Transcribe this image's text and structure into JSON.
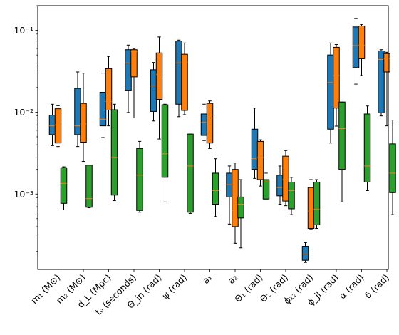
{
  "chart_data": {
    "type": "boxplot",
    "title": "",
    "xlabel": "",
    "ylabel": "",
    "yscale": "log",
    "ylim": [
      0.00012,
      0.2
    ],
    "yticks": [
      {
        "value": 0.001,
        "label": "10⁻³"
      },
      {
        "value": 0.01,
        "label": "10⁻²"
      },
      {
        "value": 0.1,
        "label": "10⁻¹"
      }
    ],
    "grid": false,
    "legend": "none",
    "colors": [
      "#1f77b4",
      "#ff7f0e",
      "#2ca02c"
    ],
    "median_color": "#ff7f0e",
    "categories": [
      "m₁ (M⊙)",
      "m₂ (M⊙)",
      "d_L (Mpc)",
      "t₀ (seconds)",
      "Θ_jn (rad)",
      "ψ (rad)",
      "a₁",
      "a₂",
      "Θ₁ (rad)",
      "Θ₂ (rad)",
      "ϕ₁₂ (rad)",
      "ϕ_jl (rad)",
      "α (rad)",
      "δ (rad)"
    ],
    "series": [
      {
        "color": "#1f77b4",
        "boxes": [
          {
            "whislo": 0.0039,
            "q1": 0.0053,
            "med": 0.0068,
            "q3": 0.0092,
            "whishi": 0.0125
          },
          {
            "whislo": 0.0038,
            "q1": 0.0053,
            "med": 0.0068,
            "q3": 0.0195,
            "whishi": 0.031
          },
          {
            "whislo": 0.0049,
            "q1": 0.0068,
            "med": 0.0082,
            "q3": 0.0175,
            "whishi": 0.03
          },
          {
            "whislo": 0.0099,
            "q1": 0.0185,
            "med": 0.04,
            "q3": 0.058,
            "whishi": 0.066
          },
          {
            "whislo": 0.0078,
            "q1": 0.0102,
            "med": 0.021,
            "q3": 0.033,
            "whishi": 0.0405
          },
          {
            "whislo": 0.0088,
            "q1": 0.0125,
            "med": 0.04,
            "q3": 0.074,
            "whishi": 0.076
          },
          {
            "whislo": 0.0045,
            "q1": 0.0052,
            "med": 0.0075,
            "q3": 0.0095,
            "whishi": 0.0125
          },
          {
            "whislo": 0.00043,
            "q1": 0.00092,
            "med": 0.0013,
            "q3": 0.0018,
            "whishi": 0.0022
          },
          {
            "whislo": 0.00155,
            "q1": 0.002,
            "med": 0.0027,
            "q3": 0.0062,
            "whishi": 0.0112
          },
          {
            "whislo": 0.00075,
            "q1": 0.00095,
            "med": 0.0012,
            "q3": 0.0017,
            "whishi": 0.0022
          },
          {
            "whislo": 0.000146,
            "q1": 0.000155,
            "med": 0.000185,
            "q3": 0.00023,
            "whishi": 0.000255
          },
          {
            "whislo": 0.0042,
            "q1": 0.0062,
            "med": 0.023,
            "q3": 0.05,
            "whishi": 0.07
          },
          {
            "whislo": 0.022,
            "q1": 0.035,
            "med": 0.065,
            "q3": 0.11,
            "whishi": 0.14
          },
          {
            "whislo": 0.009,
            "q1": 0.0098,
            "med": 0.044,
            "q3": 0.056,
            "whishi": 0.058
          }
        ]
      },
      {
        "color": "#ff7f0e",
        "boxes": [
          {
            "whislo": 0.0038,
            "q1": 0.0042,
            "med": 0.007,
            "q3": 0.011,
            "whishi": 0.012
          },
          {
            "whislo": 0.0025,
            "q1": 0.0043,
            "med": 0.0072,
            "q3": 0.0128,
            "whishi": 0.03
          },
          {
            "whislo": 0.0068,
            "q1": 0.0106,
            "med": 0.0135,
            "q3": 0.034,
            "whishi": 0.048
          },
          {
            "whislo": 0.0085,
            "q1": 0.027,
            "med": 0.055,
            "q3": 0.058,
            "whishi": 0.06
          },
          {
            "whislo": 0.0047,
            "q1": 0.0143,
            "med": 0.029,
            "q3": 0.053,
            "whishi": 0.083
          },
          {
            "whislo": 0.0093,
            "q1": 0.0105,
            "med": 0.041,
            "q3": 0.051,
            "whishi": 0.07
          },
          {
            "whislo": 0.0036,
            "q1": 0.0042,
            "med": 0.0085,
            "q3": 0.0128,
            "whishi": 0.0137
          },
          {
            "whislo": 0.00025,
            "q1": 0.0004,
            "med": 0.00063,
            "q3": 0.002,
            "whishi": 0.0024
          },
          {
            "whislo": 0.00125,
            "q1": 0.0015,
            "med": 0.0028,
            "q3": 0.0044,
            "whishi": 0.0046
          },
          {
            "whislo": 0.00072,
            "q1": 0.00082,
            "med": 0.0015,
            "q3": 0.0029,
            "whishi": 0.0034
          },
          {
            "whislo": 0.00037,
            "q1": 0.00038,
            "med": 0.00062,
            "q3": 0.0012,
            "whishi": 0.0015
          },
          {
            "whislo": 0.00675,
            "q1": 0.0112,
            "med": 0.028,
            "q3": 0.062,
            "whishi": 0.067
          },
          {
            "whislo": 0.028,
            "q1": 0.045,
            "med": 0.066,
            "q3": 0.113,
            "whishi": 0.118
          },
          {
            "whislo": 0.0068,
            "q1": 0.031,
            "med": 0.045,
            "q3": 0.052,
            "whishi": 0.054
          }
        ]
      },
      {
        "color": "#2ca02c",
        "boxes": [
          {
            "whislo": 0.00064,
            "q1": 0.00077,
            "med": 0.00135,
            "q3": 0.0021,
            "whishi": 0.00215
          },
          {
            "whislo": 0.00068,
            "q1": 0.00069,
            "med": 0.00088,
            "q3": 0.00225,
            "whishi": 0.00225
          },
          {
            "whislo": 0.00083,
            "q1": 0.00097,
            "med": 0.0028,
            "q3": 0.0107,
            "whishi": 0.0125
          },
          {
            "whislo": 0.0006,
            "q1": 0.00063,
            "med": 0.0017,
            "q3": 0.0036,
            "whishi": 0.0044
          },
          {
            "whislo": 0.0008,
            "q1": 0.0016,
            "med": 0.0031,
            "q3": 0.0123,
            "whishi": 0.0125
          },
          {
            "whislo": 0.00058,
            "q1": 0.0006,
            "med": 0.0022,
            "q3": 0.0054,
            "whishi": 0.0054
          },
          {
            "whislo": 0.00053,
            "q1": 0.00075,
            "med": 0.0011,
            "q3": 0.0018,
            "whishi": 0.0027
          },
          {
            "whislo": 0.00022,
            "q1": 0.00051,
            "med": 0.00075,
            "q3": 0.00092,
            "whishi": 0.0015
          },
          {
            "whislo": 0.00087,
            "q1": 0.00087,
            "med": 0.0014,
            "q3": 0.0015,
            "whishi": 0.0018
          },
          {
            "whislo": 0.00056,
            "q1": 0.00066,
            "med": 0.0011,
            "q3": 0.0014,
            "whishi": 0.0016
          },
          {
            "whislo": 0.00038,
            "q1": 0.00042,
            "med": 0.00065,
            "q3": 0.0014,
            "whishi": 0.0015
          },
          {
            "whislo": 0.0008,
            "q1": 0.002,
            "med": 0.0063,
            "q3": 0.0133,
            "whishi": 0.0133
          },
          {
            "whislo": 0.0011,
            "q1": 0.0014,
            "med": 0.0022,
            "q3": 0.0095,
            "whishi": 0.0119
          },
          {
            "whislo": 0.00056,
            "q1": 0.00104,
            "med": 0.0018,
            "q3": 0.0041,
            "whishi": 0.008
          }
        ]
      }
    ]
  }
}
